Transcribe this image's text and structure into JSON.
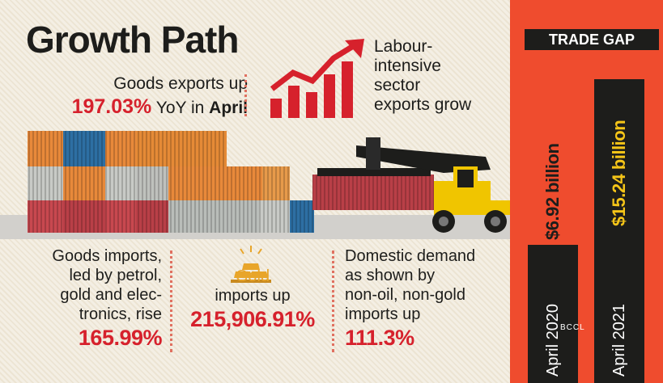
{
  "title": "Growth Path",
  "goods_exports": {
    "line1": "Goods exports up",
    "value": "197.03%",
    "suffix": "YoY in",
    "month": "April"
  },
  "labour": {
    "lines": [
      "Labour-",
      "intensive",
      "sector",
      "exports grow"
    ]
  },
  "goods_imports": {
    "lines": [
      "Goods imports,",
      "led by petrol,",
      "gold and elec-",
      "tronics, rise"
    ],
    "value": "165.99%"
  },
  "gold_imports": {
    "lines": [
      "Gold",
      "imports up"
    ],
    "value": "215,906.91%"
  },
  "domestic": {
    "lines": [
      "Domestic demand",
      "as shown by",
      "non-oil, non-gold",
      "imports up"
    ],
    "value": "111.3%"
  },
  "watermark": "BCCL",
  "colors": {
    "panel": "#ef4c2e",
    "bar": "#1d1d1b",
    "accent_red": "#d6212c",
    "gold_text": "#f5c518"
  },
  "chart_data": {
    "type": "bar",
    "title": "TRADE GAP",
    "categories": [
      "April 2020",
      "April 2021"
    ],
    "values": [
      6.92,
      15.24
    ],
    "value_labels": [
      "$6.92 billion",
      "$15.24 billion"
    ],
    "unit": "billion USD",
    "ylim": [
      0,
      16
    ]
  }
}
